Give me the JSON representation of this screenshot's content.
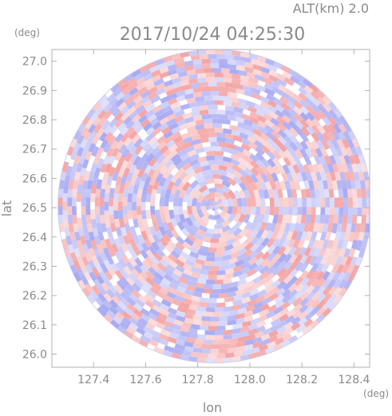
{
  "chart_data": {
    "type": "heatmap",
    "title": "2017/10/24 04:25:30",
    "subtitle": "ALT(km) 2.0",
    "xlabel": "lon",
    "ylabel": "lat",
    "x_unit": "(deg)",
    "y_unit": "(deg)",
    "xlim": [
      127.24,
      128.46
    ],
    "ylim": [
      25.955,
      27.04
    ],
    "x_ticks": [
      127.4,
      127.6,
      127.8,
      128.0,
      128.2,
      128.4
    ],
    "x_tick_labels": [
      "127.4",
      "127.6",
      "127.8",
      "128.0",
      "128.2",
      "128.4"
    ],
    "y_ticks": [
      26.0,
      26.1,
      26.2,
      26.3,
      26.4,
      26.5,
      26.6,
      26.7,
      26.8,
      26.9,
      27.0
    ],
    "y_tick_labels": [
      "26.0",
      "26.1",
      "26.2",
      "26.3",
      "26.4",
      "26.5",
      "26.6",
      "26.7",
      "26.8",
      "26.9",
      "27.0"
    ],
    "radar_center": {
      "lon": 127.865,
      "lat": 26.505
    },
    "radar_range_deg_lat": 0.535,
    "colors": {
      "positive": "#f4a4a4",
      "negative": "#a8aaf2",
      "neutral": "#ffffff",
      "axis": "#b0b0b0",
      "text": "#8a8a8a"
    },
    "grid": false,
    "legend": "none"
  }
}
